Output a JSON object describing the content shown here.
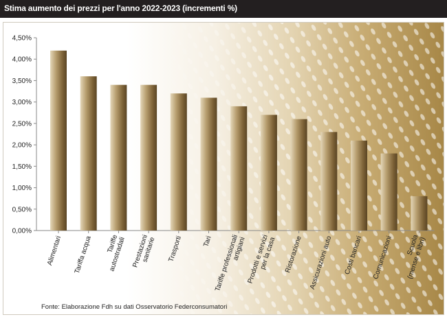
{
  "header": {
    "title": "Stima aumento dei prezzi per l'anno 2022-2023 (incrementi %)"
  },
  "footer": {
    "source": "Fonte: Elaborazione Fdh su dati Osservatorio Federconsumatori"
  },
  "colors": {
    "title_bg": "#231f20",
    "bar_light": "#d9c9a6",
    "bar_mid": "#a4885a",
    "bar_dark": "#5a4525",
    "axis": "#8a8a8a"
  },
  "chart_data": {
    "type": "bar",
    "title": "Stima aumento dei prezzi per l'anno 2022-2023 (incrementi %)",
    "xlabel": "",
    "ylabel": "",
    "ylim": [
      0,
      4.5
    ],
    "yticks": [
      0,
      0.5,
      1.0,
      1.5,
      2.0,
      2.5,
      3.0,
      3.5,
      4.0,
      4.5
    ],
    "ytick_labels": [
      "0,00%",
      "0,50%",
      "1,00%",
      "1,50%",
      "2,00%",
      "2,50%",
      "3,00%",
      "3,50%",
      "4,00%",
      "4,50%"
    ],
    "grid": false,
    "legend": "none",
    "categories": [
      [
        "Alimentari"
      ],
      [
        "Tariffa acqua"
      ],
      [
        "Tariffe",
        "autostradali"
      ],
      [
        "Prestazioni",
        "sanitarie"
      ],
      [
        "Trasporti"
      ],
      [
        "Tari"
      ],
      [
        "Tariffe professionali",
        "artigiani"
      ],
      [
        "Prodotti e servizi",
        "per la casa"
      ],
      [
        "Ristorazione"
      ],
      [
        "Assicurazioni auto"
      ],
      [
        "Costi bancari"
      ],
      [
        "Comunicazioni"
      ],
      [
        "Scuola",
        "(mense e libri)"
      ]
    ],
    "values": [
      4.2,
      3.6,
      3.4,
      3.4,
      3.2,
      3.1,
      2.9,
      2.7,
      2.6,
      2.3,
      2.1,
      1.8,
      0.8
    ]
  }
}
